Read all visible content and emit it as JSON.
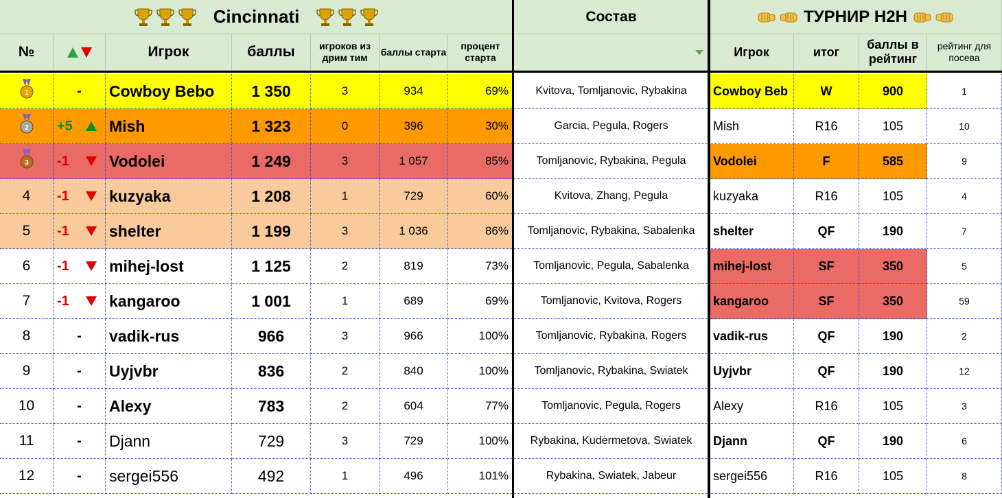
{
  "title": "Cincinnati",
  "squad_title": "Состав",
  "h2h_title": "ТУРНИР H2H",
  "headers": {
    "num": "№",
    "player": "Игрок",
    "points": "баллы",
    "dream": "игроков из дрим тим",
    "start_points": "баллы старта",
    "start_pct": "процент старта",
    "h2h_player": "Игрок",
    "result": "итог",
    "rating_points": "баллы в рейтинг",
    "seed_rating": "рейтинг для посева"
  },
  "colors": {
    "header_green": "#d9ead3",
    "gold": "#ffff00",
    "silver": "#ff9900",
    "bronze": "#ea6b66",
    "peach": "#f9cb9c",
    "positive": "#0a8a2a",
    "negative": "#e00000"
  },
  "rows": [
    {
      "num": "",
      "medal": "gold-medal-icon",
      "change": "-",
      "trend": "",
      "player": "Cowboy Bebo",
      "bold": true,
      "points": "1 350",
      "dream": "3",
      "start_points": "934",
      "start_pct": "69%",
      "squad": "Kvitova, Tomljanovic, Rybakina",
      "h2h_player": "Cowboy Beb",
      "h2h_bold": true,
      "result": "W",
      "rating_points": "900",
      "seed": "1",
      "row_color": "gold",
      "h2h_color": "gold"
    },
    {
      "num": "",
      "medal": "silver-medal-icon",
      "change": "+5",
      "trend": "up",
      "player": "Mish",
      "bold": true,
      "points": "1 323",
      "dream": "0",
      "start_points": "396",
      "start_pct": "30%",
      "squad": "Garcia, Pegula, Rogers",
      "h2h_player": "Mish",
      "h2h_bold": false,
      "result": "R16",
      "rating_points": "105",
      "seed": "10",
      "row_color": "silver",
      "h2h_color": ""
    },
    {
      "num": "",
      "medal": "bronze-medal-icon",
      "change": "-1",
      "trend": "down",
      "player": "Vodolei",
      "bold": true,
      "points": "1 249",
      "dream": "3",
      "start_points": "1 057",
      "start_pct": "85%",
      "squad": "Tomljanovic, Rybakina, Pegula",
      "h2h_player": "Vodolei",
      "h2h_bold": true,
      "result": "F",
      "rating_points": "585",
      "seed": "9",
      "row_color": "bronze",
      "h2h_color": "silver"
    },
    {
      "num": "4",
      "medal": "",
      "change": "-1",
      "trend": "down",
      "player": "kuzyaka",
      "bold": true,
      "points": "1 208",
      "dream": "1",
      "start_points": "729",
      "start_pct": "60%",
      "squad": "Kvitova, Zhang, Pegula",
      "h2h_player": "kuzyaka",
      "h2h_bold": false,
      "result": "R16",
      "rating_points": "105",
      "seed": "4",
      "row_color": "peach",
      "h2h_color": ""
    },
    {
      "num": "5",
      "medal": "",
      "change": "-1",
      "trend": "down",
      "player": "shelter",
      "bold": true,
      "points": "1 199",
      "dream": "3",
      "start_points": "1 036",
      "start_pct": "86%",
      "squad": "Tomljanovic, Rybakina, Sabalenka",
      "h2h_player": "shelter",
      "h2h_bold": true,
      "result": "QF",
      "rating_points": "190",
      "seed": "7",
      "row_color": "peach",
      "h2h_color": ""
    },
    {
      "num": "6",
      "medal": "",
      "change": "-1",
      "trend": "down",
      "player": "mihej-lost",
      "bold": true,
      "points": "1 125",
      "dream": "2",
      "start_points": "819",
      "start_pct": "73%",
      "squad": "Tomljanovic, Pegula, Sabalenka",
      "h2h_player": "mihej-lost",
      "h2h_bold": true,
      "result": "SF",
      "rating_points": "350",
      "seed": "5",
      "row_color": "",
      "h2h_color": "bronze"
    },
    {
      "num": "7",
      "medal": "",
      "change": "-1",
      "trend": "down",
      "player": "kangaroo",
      "bold": true,
      "points": "1 001",
      "dream": "1",
      "start_points": "689",
      "start_pct": "69%",
      "squad": "Tomljanovic, Kvitova, Rogers",
      "h2h_player": "kangaroo",
      "h2h_bold": true,
      "result": "SF",
      "rating_points": "350",
      "seed": "59",
      "row_color": "",
      "h2h_color": "bronze"
    },
    {
      "num": "8",
      "medal": "",
      "change": "-",
      "trend": "",
      "player": "vadik-rus",
      "bold": true,
      "points": "966",
      "dream": "3",
      "start_points": "966",
      "start_pct": "100%",
      "squad": "Tomljanovic, Rybakina, Rogers",
      "h2h_player": "vadik-rus",
      "h2h_bold": true,
      "result": "QF",
      "rating_points": "190",
      "seed": "2",
      "row_color": "",
      "h2h_color": ""
    },
    {
      "num": "9",
      "medal": "",
      "change": "-",
      "trend": "",
      "player": "Uyjvbr",
      "bold": true,
      "points": "836",
      "dream": "2",
      "start_points": "840",
      "start_pct": "100%",
      "squad": "Tomljanovic, Rybakina, Swiatek",
      "h2h_player": "Uyjvbr",
      "h2h_bold": true,
      "result": "QF",
      "rating_points": "190",
      "seed": "12",
      "row_color": "",
      "h2h_color": ""
    },
    {
      "num": "10",
      "medal": "",
      "change": "-",
      "trend": "",
      "player": "Alexy",
      "bold": true,
      "points": "783",
      "dream": "2",
      "start_points": "604",
      "start_pct": "77%",
      "squad": "Tomljanovic, Pegula, Rogers",
      "h2h_player": "Alexy",
      "h2h_bold": false,
      "result": "R16",
      "rating_points": "105",
      "seed": "3",
      "row_color": "",
      "h2h_color": ""
    },
    {
      "num": "11",
      "medal": "",
      "change": "-",
      "trend": "",
      "player": "Djann",
      "bold": false,
      "points": "729",
      "dream": "3",
      "start_points": "729",
      "start_pct": "100%",
      "squad": "Rybakina, Kudermetova, Swiatek",
      "h2h_player": "Djann",
      "h2h_bold": true,
      "result": "QF",
      "rating_points": "190",
      "seed": "6",
      "row_color": "",
      "h2h_color": ""
    },
    {
      "num": "12",
      "medal": "",
      "change": "-",
      "trend": "",
      "player": "sergei556",
      "bold": false,
      "points": "492",
      "dream": "1",
      "start_points": "496",
      "start_pct": "101%",
      "squad": "Rybakina, Swiatek, Jabeur",
      "h2h_player": "sergei556",
      "h2h_bold": false,
      "result": "R16",
      "rating_points": "105",
      "seed": "8",
      "row_color": "",
      "h2h_color": ""
    }
  ]
}
